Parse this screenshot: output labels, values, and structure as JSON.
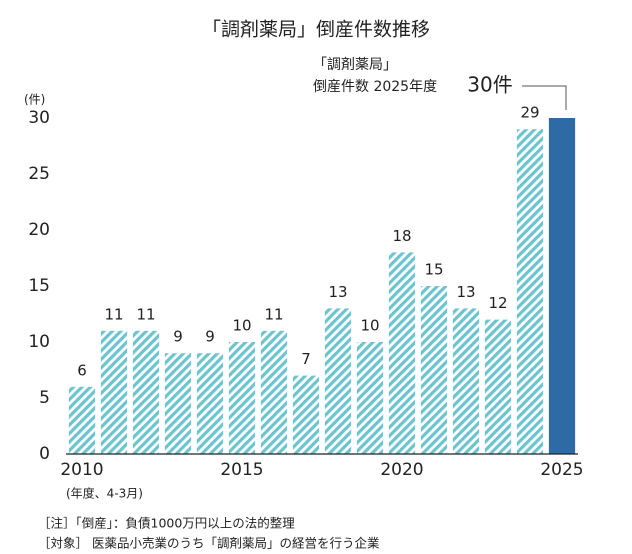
{
  "chart_data": {
    "type": "bar",
    "title": "「調剤薬局」倒産件数推移",
    "y_unit_label": "(件)",
    "x_note": "(年度、4-3月)",
    "categories": [
      "2010",
      null,
      null,
      null,
      null,
      "2015",
      null,
      null,
      null,
      null,
      "2020",
      null,
      null,
      null,
      null,
      "2025"
    ],
    "values": [
      6,
      11,
      11,
      9,
      9,
      10,
      11,
      7,
      13,
      10,
      18,
      15,
      13,
      12,
      29,
      30
    ],
    "value_labels": [
      "6",
      "11",
      "11",
      "9",
      "9",
      "10",
      "11",
      "7",
      "13",
      "10",
      "18",
      "15",
      "13",
      "12",
      "29",
      "30件"
    ],
    "bar_colors": [
      "#6cc4cf",
      "#6cc4cf",
      "#6cc4cf",
      "#6cc4cf",
      "#6cc4cf",
      "#6cc4cf",
      "#6cc4cf",
      "#6cc4cf",
      "#6cc4cf",
      "#6cc4cf",
      "#6cc4cf",
      "#6cc4cf",
      "#6cc4cf",
      "#6cc4cf",
      "#6cc4cf",
      "#2e6aa3"
    ],
    "hatched": [
      true,
      true,
      true,
      true,
      true,
      true,
      true,
      true,
      true,
      true,
      true,
      true,
      true,
      true,
      true,
      false
    ],
    "annotation": [
      "「調剤薬局」",
      "倒産件数 2025年度"
    ],
    "ylim": [
      0,
      30
    ],
    "yticks": [
      0,
      5,
      10,
      15,
      20,
      25,
      30
    ],
    "grid": false,
    "notes": [
      "［注］「倒産」：負債1000万円以上の法的整理",
      "［対象］ 医薬品小売業のうち「調剤薬局」の経営を行う企業"
    ]
  }
}
